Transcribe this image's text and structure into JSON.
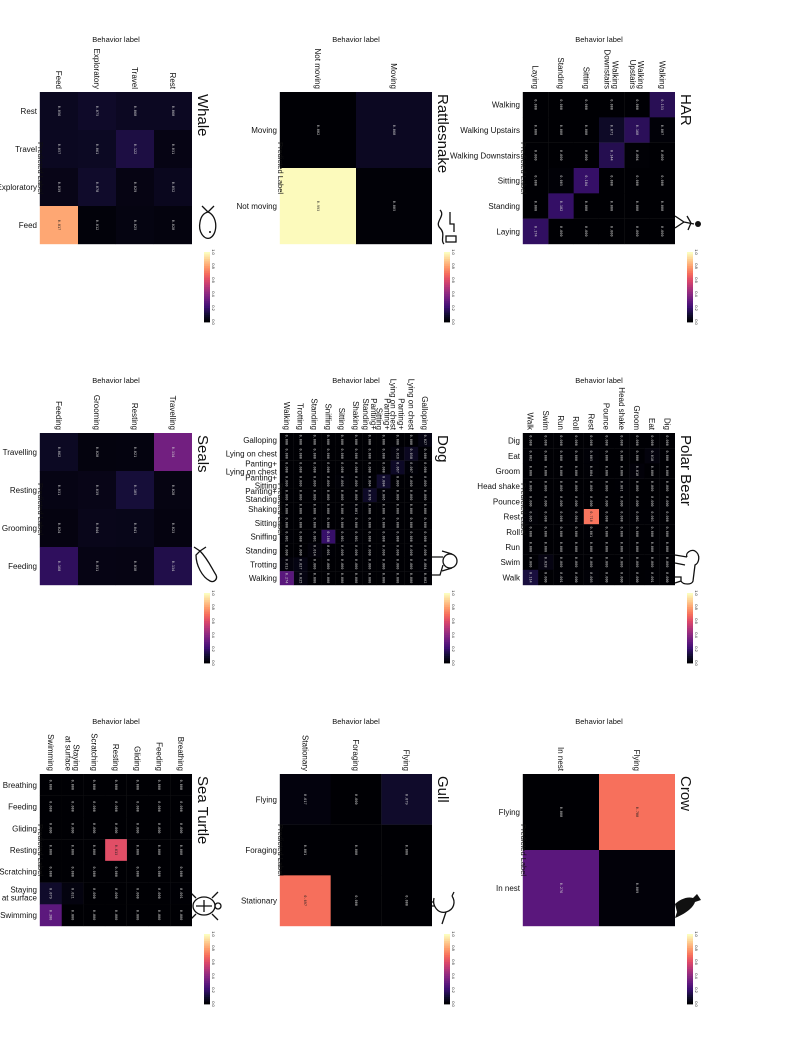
{
  "figure": {
    "axis_label_behavior": "Behavior label",
    "axis_label_predicted": "Predicted Label"
  },
  "chart_data": [
    {
      "type": "heatmap",
      "title": "Whale",
      "icon": "whale-icon",
      "categories": [
        "Rest",
        "Travel",
        "Exploratory",
        "Feed"
      ],
      "values": [
        [
          0.06,
          0.031,
          0.052,
          0.02
        ],
        [
          0.06,
          0.122,
          0.029,
          0.025
        ],
        [
          0.075,
          0.061,
          0.078,
          0.012
        ],
        [
          0.056,
          0.057,
          0.039,
          0.817
        ]
      ],
      "cell_labels": [
        [
          "0.060",
          "0.031",
          "0.052",
          "0.020"
        ],
        [
          "0.060",
          "0.122",
          "0.029",
          "0.025"
        ],
        [
          "0.075",
          "0.061",
          "0.078",
          "0.012"
        ],
        [
          "0.056",
          "0.057",
          "0.039",
          "0.817"
        ]
      ],
      "colorbar_ticks": [
        "1.0",
        "0.8",
        "0.6",
        "0.4",
        "0.2",
        "0.0"
      ]
    },
    {
      "type": "heatmap",
      "title": "Rattlesnake",
      "icon": "rattlesnake-icon",
      "categories": [
        "Moving",
        "Not moving"
      ],
      "values": [
        [
          0.06,
          0.005
        ],
        [
          0.002,
          0.993
        ]
      ],
      "cell_labels": [
        [
          "0.060",
          "0.005"
        ],
        [
          "0.002",
          "0.993"
        ]
      ],
      "colorbar_ticks": [
        "1.0",
        "0.8",
        "0.6",
        "0.4",
        "0.2",
        "0.0"
      ]
    },
    {
      "type": "heatmap",
      "title": "HAR",
      "icon": "walking-person-icon",
      "categories": [
        "Walking",
        "Walking Upstairs",
        "Walking Downstairs",
        "Sitting",
        "Standing",
        "Laying"
      ],
      "row_labels": [
        "Walking",
        "Walking\nUpstairs",
        "Walking\nDownstairs",
        "Sitting",
        "Standing",
        "Laying"
      ],
      "col_labels": [
        "Walking",
        "Walking Upstairs",
        "Walking Downstairs",
        "Sitting",
        "Standing",
        "Laying"
      ],
      "values": [
        [
          0.153,
          0.007,
          0.0,
          0.0,
          0.0,
          0.0
        ],
        [
          0.0,
          0.16,
          0.004,
          0.0,
          0.0,
          0.0
        ],
        [
          0.0,
          0.071,
          0.144,
          0.0,
          0.0,
          0.0
        ],
        [
          0.0,
          0.0,
          0.0,
          0.184,
          0.0,
          0.0
        ],
        [
          0.0,
          0.0,
          0.0,
          0.005,
          0.182,
          0.0
        ],
        [
          0.0,
          0.0,
          0.0,
          0.0,
          0.0,
          0.174
        ]
      ],
      "cell_labels": [
        [
          "0.153",
          "0.007",
          "0.000",
          "0.000",
          "0.000",
          "0.000"
        ],
        [
          "0.000",
          "0.160",
          "0.004",
          "0.000",
          "0.000",
          "0.000"
        ],
        [
          "0.000",
          "0.071",
          "0.144",
          "0.000",
          "0.000",
          "0.000"
        ],
        [
          "0.000",
          "0.000",
          "0.000",
          "0.184",
          "0.000",
          "0.000"
        ],
        [
          "0.000",
          "0.000",
          "0.000",
          "0.005",
          "0.182",
          "0.000"
        ],
        [
          "0.000",
          "0.000",
          "0.000",
          "0.000",
          "0.000",
          "0.174"
        ]
      ],
      "colorbar_ticks": [
        "1.0",
        "0.8",
        "0.6",
        "0.4",
        "0.2",
        "0.0"
      ]
    },
    {
      "type": "heatmap",
      "title": "Seals",
      "icon": "seal-icon",
      "categories": [
        "Travelling",
        "Resting",
        "Grooming",
        "Feeding"
      ],
      "values": [
        [
          0.334,
          0.028,
          0.023,
          0.134
        ],
        [
          0.021,
          0.105,
          0.041,
          0.03
        ],
        [
          0.02,
          0.039,
          0.044,
          0.031
        ],
        [
          0.062,
          0.031,
          0.024,
          0.168
        ]
      ],
      "cell_labels": [
        [
          "0.334",
          "0.028",
          "0.023",
          "0.134"
        ],
        [
          "0.021",
          "0.105",
          "0.041",
          "0.030"
        ],
        [
          "0.020",
          "0.039",
          "0.044",
          "0.031"
        ],
        [
          "0.062",
          "0.031",
          "0.024",
          "0.168"
        ]
      ],
      "colorbar_ticks": [
        "1.0",
        "0.8",
        "0.6",
        "0.4",
        "0.2",
        "0.0"
      ]
    },
    {
      "type": "heatmap",
      "title": "Dog",
      "icon": "dog-icon",
      "categories": [
        "Galloping",
        "Lying on chest",
        "Panting+ Lying on chest",
        "Panting+ Sitting",
        "Panting+ Standing",
        "Shaking",
        "Sitting",
        "Sniffing",
        "Standing",
        "Trotting",
        "Walking"
      ],
      "row_labels": [
        "Galloping",
        "Lying on chest",
        "Panting+\nLying on chest",
        "Panting+\nSitting",
        "Panting+\nStanding",
        "Shaking",
        "Sitting",
        "Sniffing",
        "Standing",
        "Trotting",
        "Walking"
      ],
      "col_labels": [
        "Galloping",
        "Lying on chest",
        "Panting+\nLying on chest",
        "Panting+\nSitting",
        "Panting+\nStanding",
        "Shaking",
        "Sitting",
        "Sniffing",
        "Standing",
        "Trotting",
        "Walking"
      ],
      "values": [
        [
          0.027,
          0.0,
          0.0,
          0.0,
          0.0,
          0.0,
          0.0,
          0.0,
          0.0,
          0.004,
          0.002
        ],
        [
          0.0,
          0.058,
          0.007,
          0.0,
          0.0,
          0.0,
          0.0,
          0.0,
          0.0,
          0.0,
          0.0
        ],
        [
          0.0,
          0.016,
          0.067,
          0.0,
          0.0,
          0.0,
          0.0,
          0.0,
          0.0,
          0.0,
          0.0
        ],
        [
          0.0,
          0.0,
          0.0,
          0.084,
          0.006,
          0.0,
          0.0,
          0.0,
          0.0,
          0.0,
          0.0
        ],
        [
          0.0,
          0.0,
          0.0,
          0.004,
          0.07,
          0.0,
          0.0,
          0.0,
          0.0,
          0.0,
          0.0
        ],
        [
          0.0,
          0.0,
          0.0,
          0.0,
          0.0,
          0.001,
          0.0,
          0.001,
          0.0,
          0.0,
          0.0
        ],
        [
          0.0,
          0.0,
          0.0,
          0.006,
          0.0,
          0.0,
          0.0,
          0.001,
          0.0,
          0.0,
          0.0
        ],
        [
          0.0,
          0.0,
          0.0,
          0.0,
          0.0,
          0.0,
          0.0,
          0.188,
          0.001,
          0.0,
          0.0
        ],
        [
          0.0,
          0.0,
          0.0,
          0.0,
          0.0,
          0.0,
          0.0,
          0.001,
          0.014,
          0.0,
          0.0
        ],
        [
          0.0,
          0.0,
          0.0,
          0.0,
          0.0,
          0.0,
          0.0,
          0.0,
          0.0,
          0.027,
          0.025
        ],
        [
          0.0,
          0.0,
          0.0,
          0.0,
          0.0,
          0.0,
          0.0,
          0.001,
          0.0,
          0.013,
          0.274
        ]
      ],
      "cell_labels": [
        [
          "0.027",
          "0.000",
          "0.000",
          "0.000",
          "0.000",
          "0.000",
          "0.000",
          "0.000",
          "0.000",
          "0.004",
          "0.002"
        ],
        [
          "0.000",
          "0.058",
          "0.007",
          "0.000",
          "0.000",
          "0.000",
          "0.000",
          "0.000",
          "0.000",
          "0.000",
          "0.000"
        ],
        [
          "0.000",
          "0.016",
          "0.067",
          "0.000",
          "0.000",
          "0.000",
          "0.000",
          "0.000",
          "0.000",
          "0.000",
          "0.000"
        ],
        [
          "0.000",
          "0.000",
          "0.000",
          "0.084",
          "0.006",
          "0.000",
          "0.000",
          "0.000",
          "0.000",
          "0.000",
          "0.000"
        ],
        [
          "0.000",
          "0.000",
          "0.000",
          "0.004",
          "0.070",
          "0.000",
          "0.000",
          "0.000",
          "0.000",
          "0.000",
          "0.000"
        ],
        [
          "0.000",
          "0.000",
          "0.000",
          "0.000",
          "0.000",
          "0.001",
          "0.000",
          "0.001",
          "0.000",
          "0.000",
          "0.000"
        ],
        [
          "0.000",
          "0.000",
          "0.000",
          "0.006",
          "0.000",
          "0.000",
          "0.000",
          "0.001",
          "0.000",
          "0.000",
          "0.000"
        ],
        [
          "0.000",
          "0.000",
          "0.000",
          "0.000",
          "0.000",
          "0.000",
          "0.000",
          "0.188",
          "0.001",
          "0.000",
          "0.000"
        ],
        [
          "0.000",
          "0.000",
          "0.000",
          "0.000",
          "0.000",
          "0.000",
          "0.000",
          "0.001",
          "0.014",
          "0.000",
          "0.000"
        ],
        [
          "0.000",
          "0.000",
          "0.000",
          "0.000",
          "0.000",
          "0.000",
          "0.000",
          "0.000",
          "0.000",
          "0.027",
          "0.025"
        ],
        [
          "0.000",
          "0.000",
          "0.000",
          "0.000",
          "0.000",
          "0.000",
          "0.000",
          "0.001",
          "0.000",
          "0.013",
          "0.274"
        ]
      ],
      "colorbar_ticks": [
        "1.0",
        "0.8",
        "0.6",
        "0.4",
        "0.2",
        "0.0"
      ]
    },
    {
      "type": "heatmap",
      "title": "Polar Bear",
      "icon": "polar-bear-icon",
      "categories": [
        "Dig",
        "Eat",
        "Groom",
        "Head shake",
        "Pounce",
        "Rest",
        "Roll",
        "Run",
        "Swim",
        "Walk"
      ],
      "values": [
        [
          0.0,
          0.0,
          0.0,
          0.0,
          0.0,
          0.0,
          0.0,
          0.0,
          0.0,
          0.0
        ],
        [
          0.0,
          0.018,
          0.0,
          0.0,
          0.0,
          0.001,
          0.0,
          0.0,
          0.0,
          0.001
        ],
        [
          0.0,
          0.0,
          0.01,
          0.0,
          0.0,
          0.001,
          0.0,
          0.0,
          0.0,
          0.0
        ],
        [
          0.0,
          0.0,
          0.0,
          0.001,
          0.0,
          0.0,
          0.0,
          0.0,
          0.0,
          0.0
        ],
        [
          0.0,
          0.0,
          0.0,
          0.0,
          0.0,
          0.0,
          0.0,
          0.0,
          0.0,
          0.0
        ],
        [
          0.0,
          0.005,
          0.004,
          0.0,
          0.0,
          0.71,
          0.001,
          0.0,
          0.0,
          0.005
        ],
        [
          0.0,
          0.0,
          0.0,
          0.0,
          0.0,
          0.004,
          0.0,
          0.0,
          0.0,
          0.0
        ],
        [
          0.0,
          0.0,
          0.0,
          0.0,
          0.0,
          0.0,
          0.0,
          0.0,
          0.0,
          0.001
        ],
        [
          0.0,
          0.0,
          0.0,
          0.0,
          0.0,
          0.0,
          0.0,
          0.0,
          0.028,
          0.0
        ],
        [
          0.0,
          0.002,
          0.0,
          0.0,
          0.0,
          0.005,
          0.0,
          0.0,
          0.0,
          0.114
        ]
      ],
      "cell_labels": [
        [
          "0.000",
          "0.000",
          "0.000",
          "0.000",
          "0.000",
          "0.000",
          "0.000",
          "0.000",
          "0.000",
          "0.000"
        ],
        [
          "0.000",
          "0.018",
          "0.000",
          "0.000",
          "0.000",
          "0.001",
          "0.000",
          "0.000",
          "0.000",
          "0.001"
        ],
        [
          "0.000",
          "0.000",
          "0.010",
          "0.000",
          "0.000",
          "0.001",
          "0.000",
          "0.000",
          "0.000",
          "0.000"
        ],
        [
          "0.000",
          "0.000",
          "0.000",
          "0.001",
          "0.000",
          "0.000",
          "0.000",
          "0.000",
          "0.000",
          "0.000"
        ],
        [
          "0.000",
          "0.000",
          "0.000",
          "0.000",
          "0.000",
          "0.000",
          "0.000",
          "0.000",
          "0.000",
          "0.000"
        ],
        [
          "0.000",
          "0.005",
          "0.004",
          "0.000",
          "0.000",
          "0.710",
          "0.001",
          "0.000",
          "0.000",
          "0.005"
        ],
        [
          "0.000",
          "0.000",
          "0.000",
          "0.000",
          "0.000",
          "0.004",
          "0.000",
          "0.000",
          "0.000",
          "0.000"
        ],
        [
          "0.000",
          "0.000",
          "0.000",
          "0.000",
          "0.000",
          "0.000",
          "0.000",
          "0.000",
          "0.000",
          "0.001"
        ],
        [
          "0.000",
          "0.000",
          "0.000",
          "0.000",
          "0.000",
          "0.000",
          "0.000",
          "0.000",
          "0.028",
          "0.000"
        ],
        [
          "0.000",
          "0.002",
          "0.000",
          "0.000",
          "0.000",
          "0.005",
          "0.000",
          "0.000",
          "0.000",
          "0.114"
        ]
      ],
      "colorbar_ticks": [
        "1.0",
        "0.8",
        "0.6",
        "0.4",
        "0.2",
        "0.0"
      ]
    },
    {
      "type": "heatmap",
      "title": "Sea Turtle",
      "icon": "sea-turtle-icon",
      "categories": [
        "Breathing",
        "Feeding",
        "Gliding",
        "Resting",
        "Scratching",
        "Staying at surface",
        "Swimming"
      ],
      "row_labels": [
        "Breathing",
        "Feeding",
        "Gliding",
        "Resting",
        "Scratching",
        "Staying\nat surface",
        "Swimming"
      ],
      "col_labels": [
        "Breathing",
        "Feeding",
        "Gliding",
        "Resting",
        "Scratching",
        "Staying\nat surface",
        "Swimming"
      ],
      "values": [
        [
          0.0,
          0.0,
          0.0,
          0.0,
          0.0,
          0.001,
          0.0
        ],
        [
          0.0,
          0.0,
          0.0,
          0.0,
          0.0,
          0.0,
          0.0
        ],
        [
          0.0,
          0.0,
          0.0,
          0.0,
          0.0,
          0.0,
          0.0
        ],
        [
          0.0,
          0.0,
          0.0,
          0.613,
          0.0,
          0.0,
          0.0
        ],
        [
          0.0,
          0.0,
          0.0,
          0.0,
          0.0,
          0.0,
          0.0
        ],
        [
          0.0,
          0.0,
          0.0,
          0.0,
          0.0,
          0.021,
          0.0
        ],
        [
          0.0,
          0.0,
          0.0,
          0.0,
          0.0,
          0.079,
          0.28
        ]
      ],
      "cell_labels": [
        [
          "0.000",
          "0.000",
          "0.000",
          "0.000",
          "0.000",
          "0.001",
          "0.000"
        ],
        [
          "0.000",
          "0.000",
          "0.000",
          "0.000",
          "0.000",
          "0.000",
          "0.000"
        ],
        [
          "0.000",
          "0.000",
          "0.000",
          "0.000",
          "0.000",
          "0.000",
          "0.000"
        ],
        [
          "0.000",
          "0.000",
          "0.000",
          "0.613",
          "0.000",
          "0.000",
          "0.000"
        ],
        [
          "0.000",
          "0.000",
          "0.000",
          "0.000",
          "0.000",
          "0.000",
          "0.000"
        ],
        [
          "0.000",
          "0.000",
          "0.000",
          "0.000",
          "0.000",
          "0.021",
          "0.000"
        ],
        [
          "0.000",
          "0.000",
          "0.000",
          "0.000",
          "0.000",
          "0.079",
          "0.280"
        ]
      ],
      "colorbar_ticks": [
        "1.0",
        "0.8",
        "0.6",
        "0.4",
        "0.2",
        "0.0"
      ]
    },
    {
      "type": "heatmap",
      "title": "Gull",
      "icon": "gull-icon",
      "categories": [
        "Flying",
        "Foraging",
        "Stationary"
      ],
      "values": [
        [
          0.079,
          0.0,
          0.0
        ],
        [
          0.0,
          0.0,
          0.0
        ],
        [
          0.017,
          0.001,
          0.697
        ]
      ],
      "cell_labels": [
        [
          "0.079",
          "0.000",
          "0.000"
        ],
        [
          "0.000",
          "0.000",
          "0.000"
        ],
        [
          "0.017",
          "0.001",
          "0.697"
        ]
      ],
      "colorbar_ticks": [
        "1.0",
        "0.8",
        "0.6",
        "0.4",
        "0.2",
        "0.0"
      ]
    },
    {
      "type": "heatmap",
      "title": "Crow",
      "icon": "crow-icon",
      "categories": [
        "Flying",
        "In nest"
      ],
      "values": [
        [
          0.7,
          0.009
        ],
        [
          0.0,
          0.276
        ]
      ],
      "cell_labels": [
        [
          "0.700",
          "0.009"
        ],
        [
          "0.000",
          "0.276"
        ]
      ],
      "colorbar_ticks": [
        "1.0",
        "0.8",
        "0.6",
        "0.4",
        "0.2",
        "0.0"
      ]
    }
  ]
}
